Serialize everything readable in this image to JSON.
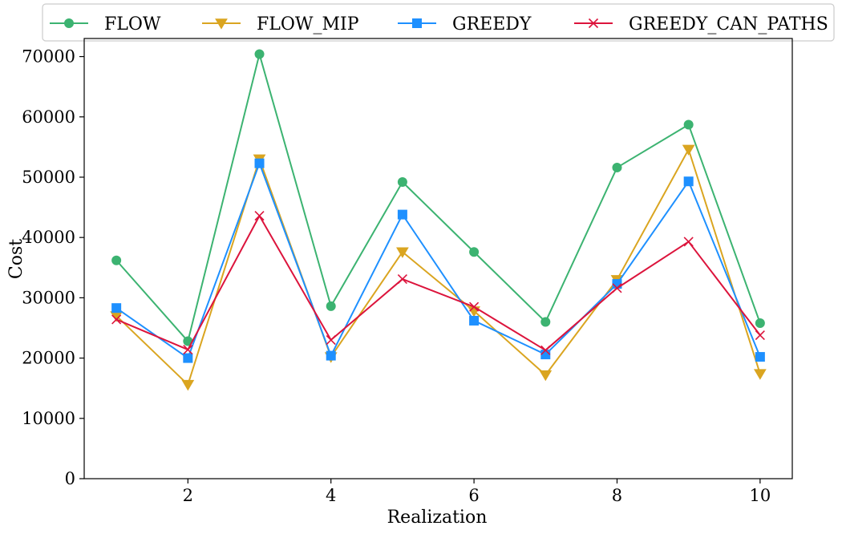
{
  "chart_data": {
    "type": "line",
    "title": "",
    "xlabel": "Realization",
    "ylabel": "Cost",
    "xlim": [
      0.55,
      10.45
    ],
    "ylim": [
      0,
      73000
    ],
    "x_ticks": [
      2,
      4,
      6,
      8,
      10
    ],
    "y_ticks": [
      0,
      10000,
      20000,
      30000,
      40000,
      50000,
      60000,
      70000
    ],
    "grid": false,
    "legend_position": "top",
    "x": [
      1,
      2,
      3,
      4,
      5,
      6,
      7,
      8,
      9,
      10
    ],
    "series": [
      {
        "name": "FLOW",
        "color": "#3cb371",
        "marker": "circle",
        "values": [
          36200,
          22800,
          70400,
          28600,
          49200,
          37600,
          26000,
          51600,
          58700,
          25800
        ]
      },
      {
        "name": "FLOW_MIP",
        "color": "#daa520",
        "marker": "triangle-down",
        "values": [
          27000,
          15600,
          53000,
          20200,
          37600,
          27800,
          17200,
          33000,
          54600,
          17400
        ]
      },
      {
        "name": "GREEDY",
        "color": "#1e90ff",
        "marker": "square",
        "values": [
          28300,
          20000,
          52300,
          20400,
          43800,
          26200,
          20600,
          32300,
          49300,
          20200
        ]
      },
      {
        "name": "GREEDY_CAN_PATHS",
        "color": "#dc143c",
        "marker": "x",
        "values": [
          26400,
          21400,
          43600,
          23000,
          33100,
          28500,
          21300,
          31600,
          39300,
          23800
        ]
      }
    ]
  }
}
